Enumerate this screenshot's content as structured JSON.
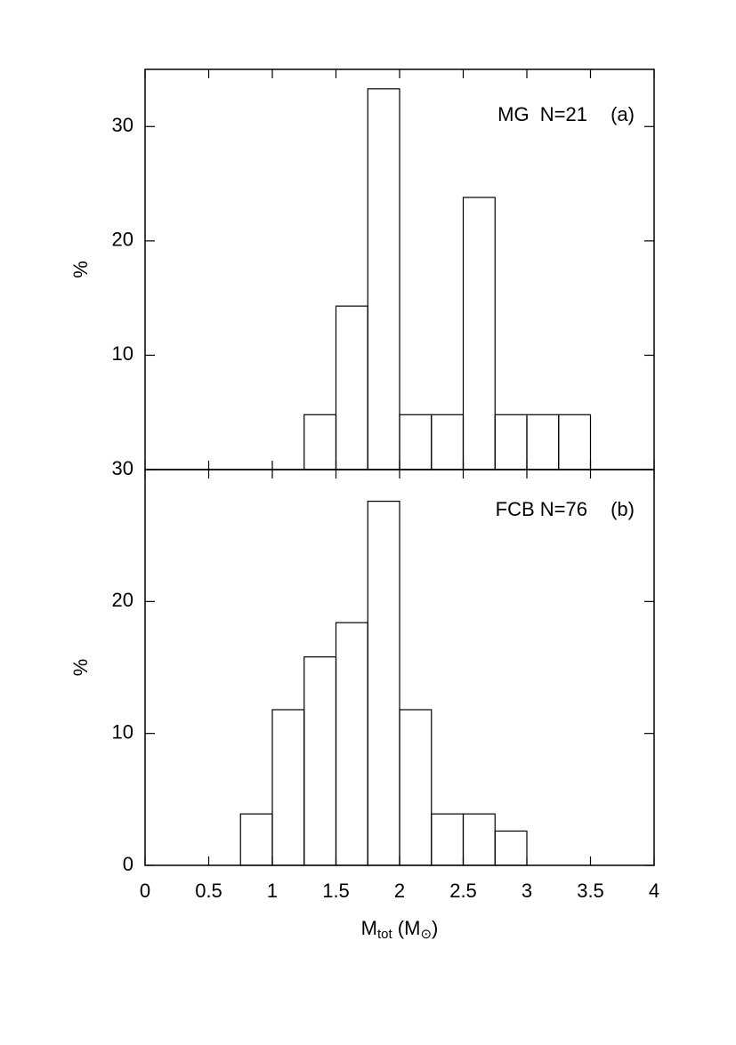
{
  "chart_data": [
    {
      "type": "histogram",
      "ylabel": "%",
      "annotations": [
        "MG  N=21",
        "(a)"
      ],
      "bins": [
        0,
        0.25,
        0.5,
        0.75,
        1,
        1.25,
        1.5,
        1.75,
        2,
        2.25,
        2.5,
        2.75,
        3,
        3.25,
        3.5,
        3.75,
        4
      ],
      "values": [
        0,
        0,
        0,
        0,
        0,
        4.8,
        14.3,
        33.3,
        4.8,
        4.8,
        23.8,
        4.8,
        4.8,
        4.8,
        0,
        0
      ],
      "xlim": [
        0,
        4
      ],
      "xticks": [
        0,
        0.5,
        1,
        1.5,
        2,
        2.5,
        3,
        3.5,
        4
      ],
      "ylim": [
        0,
        35
      ],
      "yticks": [
        10,
        20,
        30
      ],
      "color": "#000000"
    },
    {
      "type": "histogram",
      "ylabel": "%",
      "annotations": [
        "FCB N=76",
        "(b)"
      ],
      "xlabel": [
        "M",
        "tot",
        " (M",
        "⊙",
        ")"
      ],
      "bins": [
        0,
        0.25,
        0.5,
        0.75,
        1,
        1.25,
        1.5,
        1.75,
        2,
        2.25,
        2.5,
        2.75,
        3,
        3.25,
        3.5,
        3.75,
        4
      ],
      "values": [
        0,
        0,
        0,
        3.9,
        11.8,
        15.8,
        18.4,
        27.6,
        11.8,
        3.9,
        3.9,
        2.6,
        0,
        0,
        0,
        0
      ],
      "xlim": [
        0,
        4
      ],
      "xticks": [
        0,
        0.5,
        1,
        1.5,
        2,
        2.5,
        3,
        3.5,
        4
      ],
      "ylim": [
        0,
        30
      ],
      "yticks": [
        0,
        10,
        20,
        30
      ],
      "color": "#000000"
    }
  ]
}
